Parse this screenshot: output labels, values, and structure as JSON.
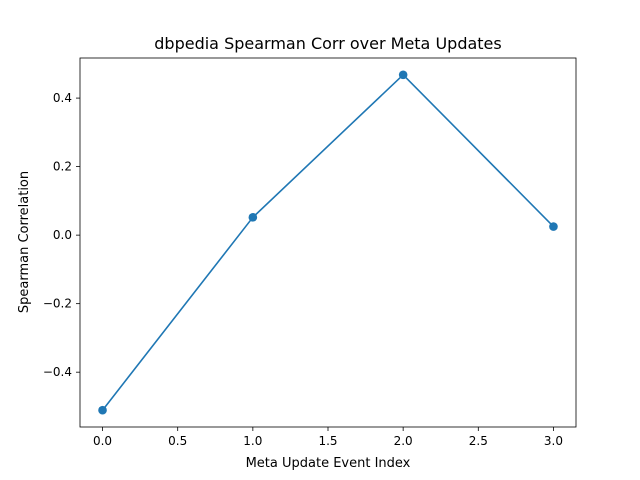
{
  "chart_data": {
    "type": "line",
    "title": "dbpedia Spearman Corr over Meta Updates",
    "xlabel": "Meta Update Event Index",
    "ylabel": "Spearman Correlation",
    "x": [
      0,
      1,
      2,
      3
    ],
    "series": [
      {
        "values": [
          -0.511,
          0.052,
          0.468,
          0.025
        ],
        "color": "#1f77b4",
        "marker": "circle"
      }
    ],
    "xlim": [
      -0.15,
      3.15
    ],
    "ylim": [
      -0.56,
      0.517
    ],
    "xticks": [
      0.0,
      0.5,
      1.0,
      1.5,
      2.0,
      2.5,
      3.0
    ],
    "xtick_labels": [
      "0.0",
      "0.5",
      "1.0",
      "1.5",
      "2.0",
      "2.5",
      "3.0"
    ],
    "yticks": [
      -0.4,
      -0.2,
      0.0,
      0.2,
      0.4
    ],
    "ytick_labels": [
      "−0.4",
      "−0.2",
      "0.0",
      "0.2",
      "0.4"
    ],
    "grid": false,
    "legend": false
  }
}
